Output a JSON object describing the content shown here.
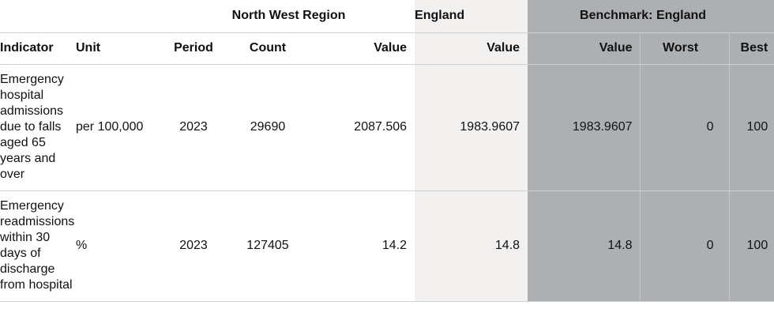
{
  "groups": {
    "region": "North West Region",
    "england": "England",
    "benchmark": "Benchmark: England"
  },
  "columns": {
    "indicator": "Indicator",
    "unit": "Unit",
    "period": "Period",
    "count": "Count",
    "value": "Value",
    "england_value": "Value",
    "benchmark_value": "Value",
    "worst": "Worst",
    "best": "Best"
  },
  "rows": [
    {
      "indicator": "Emergency hospital admissions due to falls aged 65 years and over",
      "unit": "per 100,000",
      "period": "2023",
      "count": "29690",
      "value": "2087.506",
      "england_value": "1983.9607",
      "benchmark_value": "1983.9607",
      "worst": "0",
      "best": "100"
    },
    {
      "indicator": "Emergency readmissions within 30 days of discharge from hospital",
      "unit": "%",
      "period": "2023",
      "count": "127405",
      "value": "14.2",
      "england_value": "14.8",
      "benchmark_value": "14.8",
      "worst": "0",
      "best": "100"
    }
  ]
}
